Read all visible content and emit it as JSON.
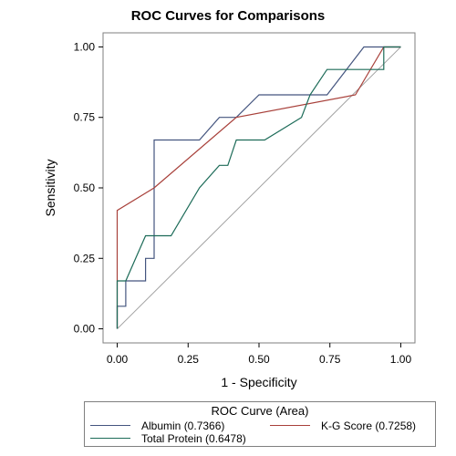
{
  "chart_data": {
    "type": "line",
    "title": "ROC Curves for Comparisons",
    "xlabel": "1 - Specificity",
    "ylabel": "Sensitivity",
    "xlim": [
      -0.05,
      1.05
    ],
    "ylim": [
      -0.05,
      1.05
    ],
    "xticks": [
      0.0,
      0.25,
      0.5,
      0.75,
      1.0
    ],
    "yticks": [
      0.0,
      0.25,
      0.5,
      0.75,
      1.0
    ],
    "xtick_labels": [
      "0.00",
      "0.25",
      "0.50",
      "0.75",
      "1.00"
    ],
    "ytick_labels": [
      "0.00",
      "0.25",
      "0.50",
      "0.75",
      "1.00"
    ],
    "grid": false,
    "legend": {
      "title": "ROC Curve (Area)",
      "position": "bottom"
    },
    "reference_line": {
      "x": [
        0,
        1
      ],
      "y": [
        0,
        1
      ],
      "color": "#a0a0a0"
    },
    "series": [
      {
        "name": "Albumin  (0.7366)",
        "color": "#44557f",
        "x": [
          0.0,
          0.0,
          0.03,
          0.03,
          0.1,
          0.1,
          0.13,
          0.13,
          0.29,
          0.36,
          0.42,
          0.5,
          0.74,
          0.87,
          0.97,
          1.0
        ],
        "y": [
          0.0,
          0.08,
          0.08,
          0.17,
          0.17,
          0.25,
          0.25,
          0.67,
          0.67,
          0.75,
          0.75,
          0.83,
          0.83,
          1.0,
          1.0,
          1.0
        ]
      },
      {
        "name": "K-G Score  (0.7258)",
        "color": "#a8403a",
        "x": [
          0.0,
          0.0,
          0.13,
          0.42,
          0.84,
          0.94,
          1.0
        ],
        "y": [
          0.0,
          0.42,
          0.5,
          0.75,
          0.83,
          1.0,
          1.0
        ]
      },
      {
        "name": "Total Protein  (0.6478)",
        "color": "#1c6b58",
        "x": [
          0.0,
          0.0,
          0.03,
          0.1,
          0.19,
          0.29,
          0.36,
          0.39,
          0.42,
          0.52,
          0.65,
          0.68,
          0.74,
          0.84,
          0.94,
          0.94,
          1.0
        ],
        "y": [
          0.0,
          0.17,
          0.17,
          0.33,
          0.33,
          0.5,
          0.58,
          0.58,
          0.67,
          0.67,
          0.75,
          0.83,
          0.92,
          0.92,
          0.92,
          1.0,
          1.0
        ]
      }
    ]
  }
}
